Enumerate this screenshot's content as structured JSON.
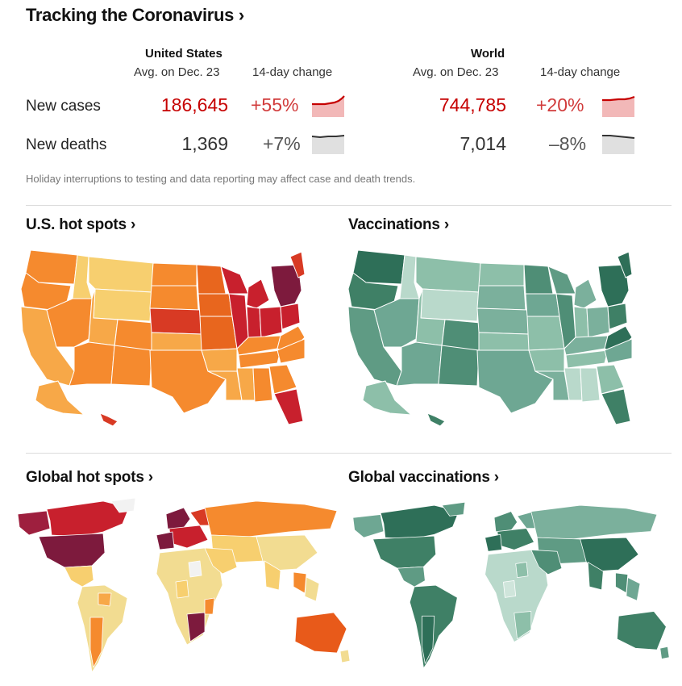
{
  "header": {
    "title": "Tracking the Coronavirus",
    "chevron": "›"
  },
  "stats": {
    "us": {
      "name": "United States",
      "avg_label": "Avg. on Dec. 23",
      "change_label": "14-day change"
    },
    "world": {
      "name": "World",
      "avg_label": "Avg. on Dec. 23",
      "change_label": "14-day change"
    },
    "rows": [
      {
        "label": "New cases",
        "us_value": "186,645",
        "us_change": "+55%",
        "world_value": "744,785",
        "world_change": "+20%",
        "trend": "up"
      },
      {
        "label": "New deaths",
        "us_value": "1,369",
        "us_change": "+7%",
        "world_value": "7,014",
        "world_change": "–8%",
        "trend": "flat"
      }
    ]
  },
  "note": "Holiday interruptions to testing and data reporting may affect case and death trends.",
  "sections": {
    "us_hotspots": "U.S. hot spots",
    "vaccinations": "Vaccinations",
    "global_hotspots": "Global hot spots",
    "global_vaccinations": "Global vaccinations"
  },
  "colors": {
    "cases_red": "#c60000",
    "change_red": "#d13b3b",
    "spark_fill_red": "#f2b8b8",
    "spark_fill_gray": "#e0e0e0",
    "hot_light": "#f7cf6f",
    "hot_orange": "#f58a2e",
    "hot_red": "#c8202d",
    "hot_maroon": "#7d1a3d",
    "vax_light": "#b9d9cb",
    "vax_mid": "#6ea793",
    "vax_dark": "#2e6f58"
  }
}
